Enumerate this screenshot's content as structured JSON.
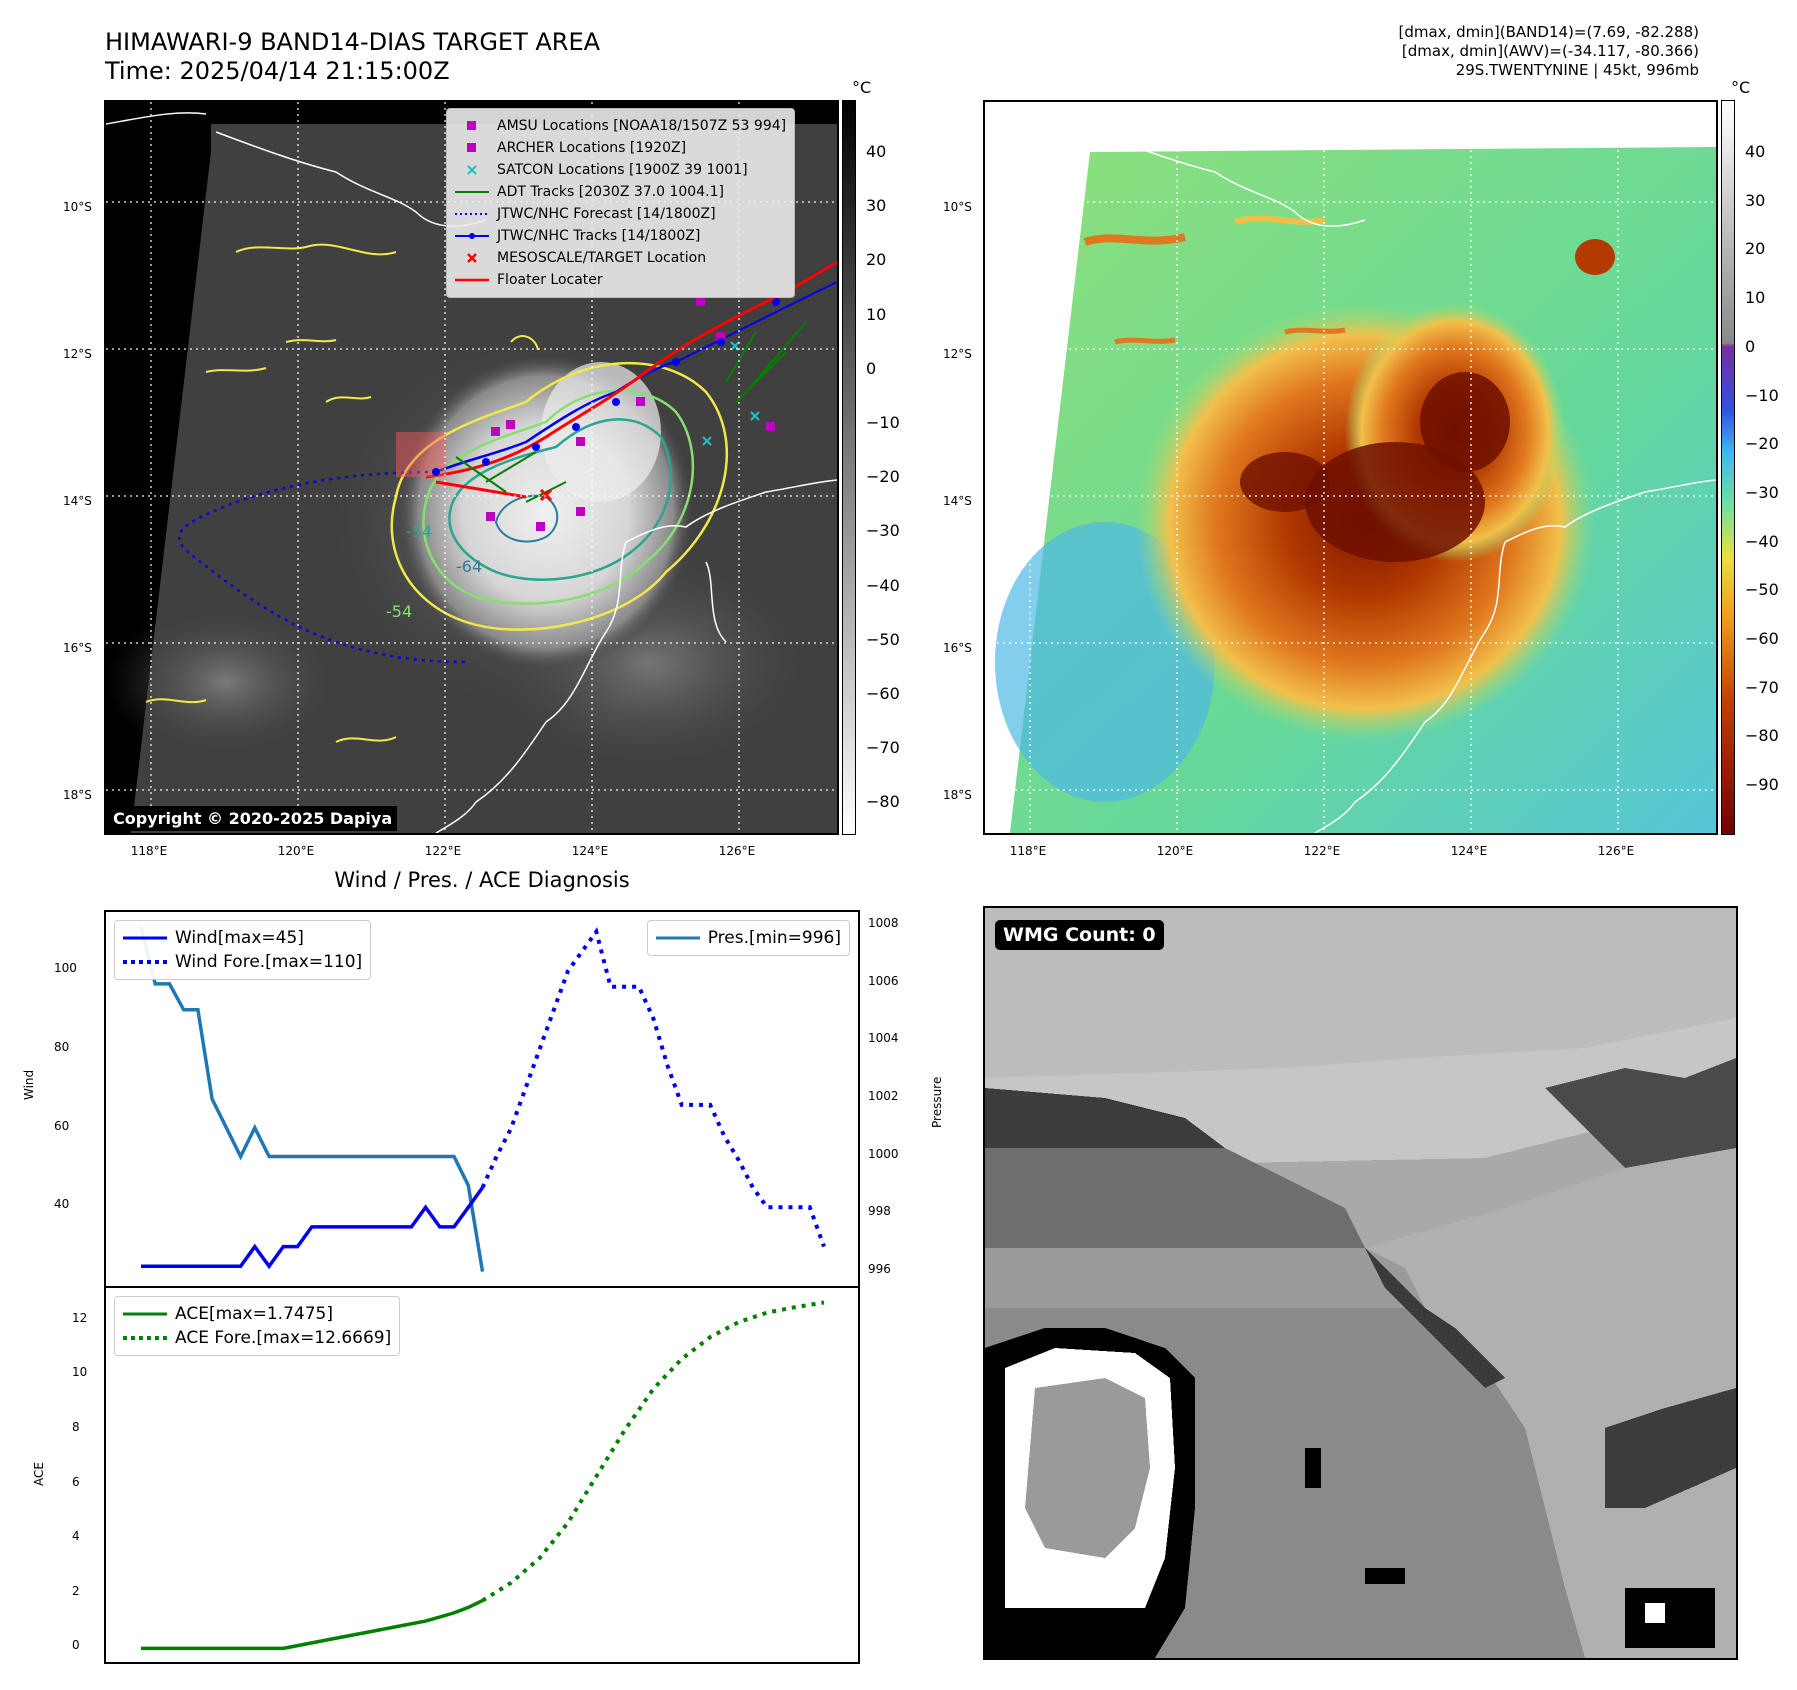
{
  "header": {
    "title_line1": "HIMAWARI-9 BAND14-DIAS TARGET AREA",
    "title_line2": "Time: 2025/04/14 21:15:00Z",
    "info_line1": "[dmax, dmin](BAND14)=(7.69, -82.288)",
    "info_line2": "[dmax, dmin](AWV)=(-34.117, -80.366)",
    "info_line3": "29S.TWENTYNINE | 45kt, 996mb"
  },
  "map_axes": {
    "lat_labels": [
      "10°S",
      "12°S",
      "14°S",
      "16°S",
      "18°S"
    ],
    "lon_labels": [
      "118°E",
      "120°E",
      "122°E",
      "124°E",
      "126°E"
    ]
  },
  "ir_panel": {
    "unit": "°C",
    "colorbar_ticks": [
      "40",
      "30",
      "20",
      "10",
      "0",
      "−10",
      "−20",
      "−30",
      "−40",
      "−50",
      "−60",
      "−70",
      "−80"
    ],
    "copyright": "Copyright © 2020-2025 Dapiya",
    "contour_labels": [
      "-54",
      "-64",
      "-54",
      "-54"
    ],
    "legend": [
      {
        "label": "AMSU Locations [NOAA18/1507Z 53 994]",
        "color": "#c000c0",
        "symbol": "square"
      },
      {
        "label": "ARCHER Locations [1920Z]",
        "color": "#c000c0",
        "symbol": "square"
      },
      {
        "label": "SATCON Locations [1900Z 39 1001]",
        "color": "#20c0c0",
        "symbol": "x"
      },
      {
        "label": "ADT Tracks [2030Z 37.0 1004.1]",
        "color": "#008000",
        "symbol": "line"
      },
      {
        "label": "JTWC/NHC Forecast [14/1800Z]",
        "color": "#0000ff",
        "symbol": "dotted"
      },
      {
        "label": "JTWC/NHC Tracks [14/1800Z]",
        "color": "#0000ff",
        "symbol": "line-dot"
      },
      {
        "label": "MESOSCALE/TARGET Location",
        "color": "#ff0000",
        "symbol": "x"
      },
      {
        "label": "Floater Locater",
        "color": "#ff0000",
        "symbol": "line"
      }
    ]
  },
  "awv_panel": {
    "unit": "°C",
    "colorbar_ticks": [
      "40",
      "30",
      "20",
      "10",
      "0",
      "−10",
      "−20",
      "−30",
      "−40",
      "−50",
      "−60",
      "−70",
      "−80",
      "−90"
    ]
  },
  "wmg_panel": {
    "label": "WMG Count: 0"
  },
  "chart_data": [
    {
      "type": "line",
      "title": "Wind / Pres. / ACE Diagnosis",
      "ylabel": "Wind",
      "y2label": "Pressure",
      "ylim": [
        20,
        115
      ],
      "y2lim": [
        995.5,
        1008.5
      ],
      "yticks": [
        "100",
        "80",
        "60",
        "40"
      ],
      "y2ticks": [
        "1008",
        "1006",
        "1004",
        "1002",
        "1000",
        "998",
        "996"
      ],
      "series": [
        {
          "name": "Wind[max=45]",
          "color": "#0000ee",
          "style": "solid",
          "axis": "left",
          "x": [
            0,
            1,
            2,
            3,
            4,
            5,
            6,
            7,
            8,
            9,
            10,
            11,
            12,
            13,
            14,
            15,
            16,
            17,
            18,
            19,
            20,
            21,
            22,
            23,
            24
          ],
          "y": [
            25,
            25,
            25,
            25,
            25,
            25,
            25,
            25,
            30,
            25,
            30,
            30,
            35,
            35,
            35,
            35,
            35,
            35,
            35,
            35,
            40,
            35,
            35,
            40,
            45
          ]
        },
        {
          "name": "Wind Fore.[max=110]",
          "color": "#0000ee",
          "style": "dotted",
          "axis": "left",
          "x": [
            24,
            25,
            26,
            27,
            28,
            29,
            30,
            31,
            32,
            33,
            34,
            35,
            36,
            37,
            38,
            39,
            40,
            41,
            42,
            43,
            44,
            45,
            46,
            47,
            48
          ],
          "y": [
            45,
            53,
            60,
            70,
            80,
            90,
            100,
            105,
            110,
            96,
            96,
            96,
            88,
            76,
            66,
            66,
            66,
            58,
            52,
            45,
            40,
            40,
            40,
            40,
            30
          ]
        },
        {
          "name": "Pres.[min=996]",
          "color": "#1f77b4",
          "style": "solid",
          "axis": "right",
          "x": [
            0,
            1,
            2,
            3,
            4,
            5,
            6,
            7,
            8,
            9,
            10,
            11,
            12,
            13,
            14,
            15,
            16,
            17,
            18,
            19,
            20,
            21,
            22,
            23,
            24
          ],
          "y": [
            1008,
            1006,
            1006,
            1005.1,
            1005.1,
            1002,
            1001,
            1000,
            1001,
            1000,
            1000,
            1000,
            1000,
            1000,
            1000,
            1000,
            1000,
            1000,
            1000,
            1000,
            1000,
            1000,
            1000,
            999,
            996
          ]
        }
      ]
    },
    {
      "type": "line",
      "ylabel": "ACE",
      "ylim": [
        -0.5,
        13.2
      ],
      "yticks": [
        "12",
        "10",
        "8",
        "6",
        "4",
        "2",
        "0"
      ],
      "series": [
        {
          "name": "ACE[max=1.7475]",
          "color": "#008000",
          "style": "solid",
          "x": [
            0,
            10,
            12,
            14,
            16,
            18,
            20,
            21,
            22,
            23,
            24
          ],
          "y": [
            0,
            0,
            0.2,
            0.4,
            0.6,
            0.8,
            1.0,
            1.15,
            1.3,
            1.5,
            1.75
          ]
        },
        {
          "name": "ACE Fore.[max=12.6669]",
          "color": "#008000",
          "style": "dotted",
          "x": [
            24,
            26,
            28,
            30,
            32,
            34,
            36,
            38,
            40,
            42,
            44,
            46,
            48
          ],
          "y": [
            1.75,
            2.4,
            3.3,
            4.6,
            6.3,
            8.0,
            9.5,
            10.6,
            11.4,
            11.95,
            12.3,
            12.5,
            12.67
          ]
        }
      ]
    }
  ]
}
